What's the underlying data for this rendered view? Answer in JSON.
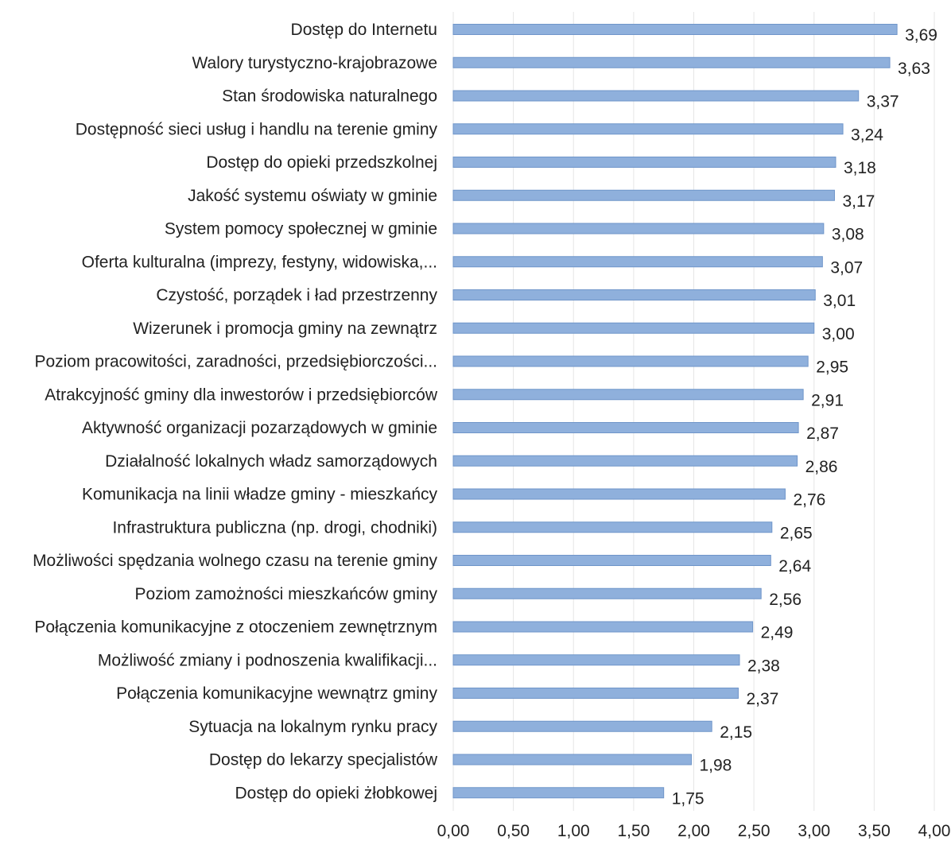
{
  "chart_data": {
    "type": "bar",
    "orientation": "horizontal",
    "categories": [
      "Dostęp do Internetu",
      "Walory turystyczno-krajobrazowe",
      "Stan środowiska naturalnego",
      "Dostępność sieci usług i handlu na terenie gminy",
      "Dostęp do opieki przedszkolnej",
      "Jakość systemu oświaty w gminie",
      "System pomocy społecznej w gminie",
      "Oferta kulturalna (imprezy, festyny, widowiska,...",
      "Czystość, porządek i ład przestrzenny",
      "Wizerunek i promocja gminy na zewnątrz",
      "Poziom pracowitości, zaradności, przedsiębiorczości...",
      "Atrakcyjność gminy dla inwestorów i przedsiębiorców",
      "Aktywność organizacji pozarządowych w gminie",
      "Działalność lokalnych władz samorządowych",
      "Komunikacja na linii władze gminy - mieszkańcy",
      "Infrastruktura publiczna (np. drogi, chodniki)",
      "Możliwości spędzania wolnego czasu na terenie gminy",
      "Poziom zamożności mieszkańców gminy",
      "Połączenia komunikacyjne z otoczeniem zewnętrznym",
      "Możliwość zmiany i podnoszenia kwalifikacji...",
      "Połączenia komunikacyjne wewnątrz gminy",
      "Sytuacja na lokalnym rynku pracy",
      "Dostęp do lekarzy specjalistów",
      "Dostęp do opieki żłobkowej"
    ],
    "values": [
      3.69,
      3.63,
      3.37,
      3.24,
      3.18,
      3.17,
      3.08,
      3.07,
      3.01,
      3.0,
      2.95,
      2.91,
      2.87,
      2.86,
      2.76,
      2.65,
      2.64,
      2.56,
      2.49,
      2.38,
      2.37,
      2.15,
      1.98,
      1.75
    ],
    "value_labels": [
      "3,69",
      "3,63",
      "3,37",
      "3,24",
      "3,18",
      "3,17",
      "3,08",
      "3,07",
      "3,01",
      "3,00",
      "2,95",
      "2,91",
      "2,87",
      "2,86",
      "2,76",
      "2,65",
      "2,64",
      "2,56",
      "2,49",
      "2,38",
      "2,37",
      "2,15",
      "1,98",
      "1,75"
    ],
    "xlim": [
      0,
      4
    ],
    "x_ticks": [
      0,
      0.5,
      1,
      1.5,
      2,
      2.5,
      3,
      3.5,
      4
    ],
    "x_tick_labels": [
      "0,00",
      "0,50",
      "1,00",
      "1,50",
      "2,00",
      "2,50",
      "3,00",
      "3,50",
      "4,00"
    ],
    "title": "",
    "xlabel": "",
    "ylabel": "",
    "grid": true,
    "legend": "none",
    "bar_color": "#8fb0dc",
    "bar_edge_color": "#6f95c9"
  }
}
